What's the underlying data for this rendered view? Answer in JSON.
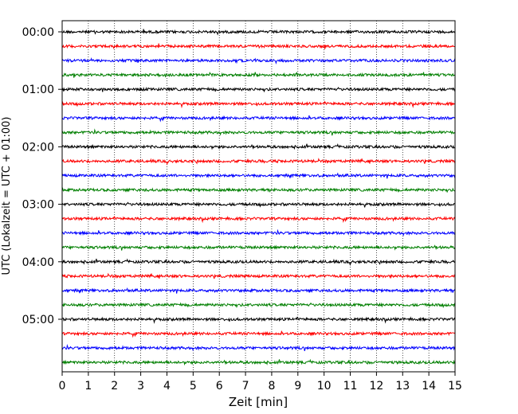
{
  "chart_data": {
    "type": "line",
    "title": "",
    "xlabel": "Zeit  [min]",
    "ylabel": "UTC (Lokalzeit = UTC + 01:00)",
    "xlim": [
      0,
      15
    ],
    "x_ticks": [
      "0",
      "1",
      "2",
      "3",
      "4",
      "5",
      "6",
      "7",
      "8",
      "9",
      "10",
      "11",
      "12",
      "13",
      "14",
      "15"
    ],
    "y_tick_labels": [
      "00:00",
      "01:00",
      "02:00",
      "03:00",
      "04:00",
      "05:00"
    ],
    "trace_interval_min": 15,
    "trace_count": 24,
    "trace_colors": [
      "#000000",
      "#ff0000",
      "#0000ff",
      "#007f00"
    ],
    "vertical_grid": "dotted",
    "legend": "none"
  }
}
